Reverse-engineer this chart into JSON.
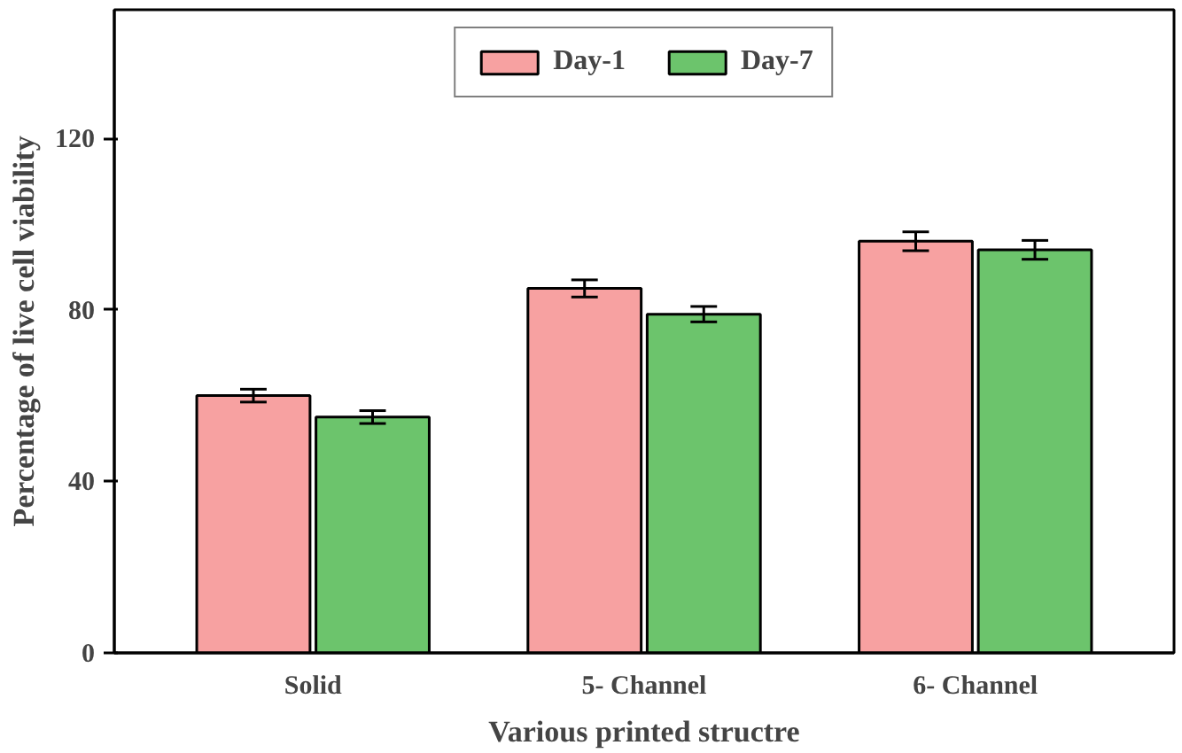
{
  "chart_data": {
    "type": "bar",
    "xlabel": "Various printed structre",
    "ylabel": "Percentage of live cell viability",
    "categories": [
      "Solid",
      "5- Channel",
      "6- Channel"
    ],
    "series": [
      {
        "name": "Day-1",
        "color": "#f7a1a1",
        "values": [
          60,
          85,
          96
        ],
        "errors": [
          1.5,
          2,
          2.2
        ]
      },
      {
        "name": "Day-7",
        "color": "#6cc46c",
        "values": [
          55,
          79,
          94
        ],
        "errors": [
          1.5,
          1.8,
          2.2
        ]
      }
    ],
    "ylim": [
      0,
      150
    ],
    "yticks": [
      0,
      40,
      80,
      120
    ],
    "grid": false,
    "legend": "top"
  }
}
